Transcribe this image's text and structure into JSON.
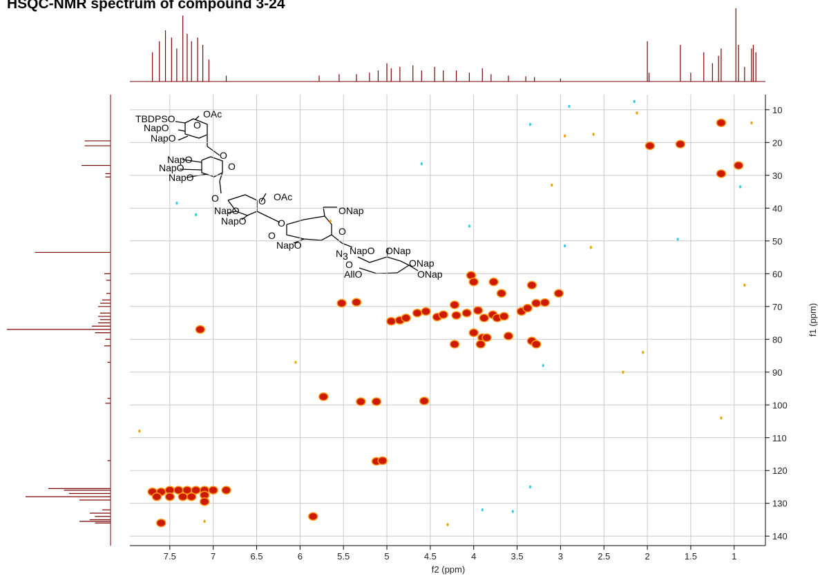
{
  "chart_data": {
    "type": "hsqc",
    "title": "HSQC-NMR spectrum of compound 3-24",
    "x_label": "f2 (ppm)",
    "y_label": "f1 (ppm)",
    "xlim": [
      7.96,
      0.64
    ],
    "ylim": [
      142.9,
      5.4
    ],
    "xticks": [
      7.5,
      7.0,
      6.5,
      6.0,
      5.5,
      5.0,
      4.5,
      4.0,
      3.5,
      3.0,
      2.5,
      2.0,
      1.5,
      1.0
    ],
    "yticks": [
      10,
      20,
      30,
      40,
      50,
      60,
      70,
      80,
      90,
      100,
      110,
      120,
      130,
      140
    ],
    "grid": true,
    "series": [
      {
        "color": "#cc1a00",
        "x": [
          1.15,
          1.97,
          1.62,
          0.95,
          1.15,
          4.03,
          4.0,
          3.77,
          3.33,
          3.68,
          3.02,
          5.52,
          5.35,
          4.22,
          3.28,
          3.18,
          4.95,
          4.85,
          4.78,
          4.65,
          4.55,
          4.42,
          4.35,
          4.2,
          4.08,
          3.95,
          3.88,
          3.78,
          3.73,
          3.65,
          3.45,
          3.38,
          7.15,
          4.0,
          3.9,
          3.85,
          3.6,
          4.22,
          3.92,
          3.33,
          3.28,
          5.73,
          5.3,
          5.12,
          4.57,
          5.12,
          5.05,
          7.7,
          7.6,
          7.5,
          7.4,
          7.3,
          7.2,
          7.1,
          7.0,
          6.85,
          7.65,
          7.5,
          7.35,
          7.25,
          7.1,
          7.1,
          7.6,
          5.85
        ],
        "values": [
          14,
          21,
          20.5,
          27,
          29.5,
          60.5,
          62.5,
          62.5,
          63.5,
          66,
          66,
          69,
          68.7,
          69.5,
          69,
          68.8,
          74.5,
          74.2,
          73.5,
          72,
          71.5,
          73.2,
          72.5,
          72.7,
          72,
          71.2,
          73.5,
          72.5,
          73.5,
          73,
          71.5,
          70.5,
          77,
          78,
          79.5,
          79.5,
          79,
          81.5,
          81.5,
          80.5,
          81.5,
          97.5,
          99,
          99,
          98.8,
          117.2,
          117,
          126.5,
          126.5,
          126,
          126,
          126,
          126,
          126,
          126,
          126,
          128,
          128,
          128,
          128,
          127.5,
          129.5,
          136,
          134
        ]
      },
      {
        "color": "#33ccee",
        "x": [
          2.15,
          2.9,
          3.35,
          4.6,
          7.42,
          7.2,
          4.05,
          2.95,
          1.65,
          0.93,
          3.35,
          3.9,
          3.55,
          3.2
        ],
        "values": [
          7.5,
          9,
          14.5,
          26.5,
          38.5,
          42,
          45.5,
          51.5,
          49.5,
          33.5,
          125,
          132,
          132.5,
          88
        ]
      },
      {
        "color": "#f0a000",
        "x": [
          2.12,
          2.62,
          2.95,
          3.1,
          2.05,
          2.28,
          7.85,
          6.05,
          5.65,
          1.15,
          0.88,
          0.8,
          2.65,
          4.3,
          7.1
        ],
        "values": [
          11,
          17.5,
          18,
          33,
          84,
          90,
          108,
          87,
          44,
          104,
          63.5,
          14,
          52,
          136.5,
          135.5
        ]
      }
    ],
    "top_trace": {
      "color": "#7a0000",
      "x": [
        7.7,
        7.62,
        7.55,
        7.48,
        7.42,
        7.35,
        7.3,
        7.25,
        7.18,
        7.12,
        7.05,
        6.85,
        5.78,
        5.55,
        5.35,
        5.2,
        5.1,
        5.0,
        4.95,
        4.85,
        4.7,
        4.6,
        4.45,
        4.35,
        4.2,
        4.05,
        3.9,
        3.8,
        3.6,
        3.4,
        3.3,
        3.0,
        2.0,
        1.98,
        1.62,
        1.5,
        1.35,
        1.25,
        1.18,
        1.15,
        0.98,
        0.95,
        0.88,
        0.8,
        0.78,
        0.75
      ],
      "values": [
        40,
        55,
        70,
        60,
        45,
        90,
        65,
        55,
        60,
        50,
        30,
        8,
        8,
        10,
        10,
        12,
        15,
        25,
        18,
        20,
        22,
        15,
        20,
        15,
        15,
        12,
        18,
        10,
        8,
        7,
        6,
        4,
        55,
        12,
        50,
        12,
        40,
        25,
        35,
        45,
        100,
        50,
        20,
        45,
        50,
        40
      ]
    },
    "left_trace": {
      "color": "#7a0000",
      "x": [
        19.5,
        21,
        27,
        29.5,
        30.5,
        53.5,
        60,
        62,
        66,
        68,
        69,
        70,
        72,
        73,
        74,
        75,
        76,
        77,
        78,
        80,
        82,
        87,
        98,
        99.5,
        117,
        125.5,
        126,
        127,
        128,
        129,
        132,
        133,
        134,
        135,
        135.5,
        136
      ],
      "values": [
        25,
        25,
        28,
        5,
        5,
        73,
        6,
        4,
        4,
        8,
        10,
        12,
        10,
        12,
        10,
        12,
        18,
        100,
        15,
        5,
        6,
        3,
        3,
        5,
        3,
        60,
        45,
        40,
        82,
        30,
        8,
        20,
        15,
        20,
        30,
        15
      ]
    }
  },
  "structure": {
    "labels": [
      "TBDPSO",
      "OAc",
      "O",
      "NapO",
      "NapO",
      "NapO",
      "O",
      "O",
      "NapO",
      "NapO",
      "O",
      "OAc",
      "O",
      "NapO",
      "NapO",
      "O",
      "ONap",
      "O",
      "O",
      "NapO",
      "N",
      "3",
      "NapO",
      "ONap",
      "O",
      "ONap",
      "AllO",
      "ONap"
    ]
  }
}
